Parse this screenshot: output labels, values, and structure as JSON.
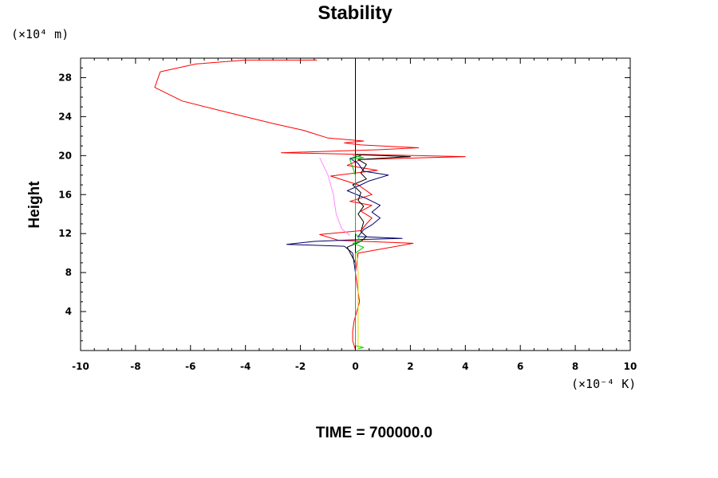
{
  "chart_data": {
    "type": "line",
    "title": "Stability",
    "ylabel": "Height",
    "xlabel": "",
    "x_unit": "(×10⁻⁴ K)",
    "y_unit": "(×10⁴ m)",
    "footer": "TIME = 700000.0",
    "xlim": [
      -10,
      10
    ],
    "ylim": [
      0,
      30
    ],
    "x_ticks": [
      -10,
      -8,
      -6,
      -4,
      -2,
      0,
      2,
      4,
      6,
      8,
      10
    ],
    "y_ticks": [
      4,
      8,
      12,
      16,
      20,
      24,
      28
    ],
    "zero_line": 0,
    "grid": false,
    "series": [
      {
        "color": "#ff0000",
        "points": [
          [
            0,
            0.1
          ],
          [
            -0.1,
            1
          ],
          [
            -0.1,
            2
          ],
          [
            -0.05,
            3
          ],
          [
            0.05,
            4
          ],
          [
            0.15,
            5
          ],
          [
            0.1,
            6
          ],
          [
            0.05,
            7
          ],
          [
            0,
            8
          ],
          [
            0.05,
            9
          ],
          [
            0.1,
            10
          ],
          [
            2.1,
            11
          ],
          [
            -0.6,
            11.3
          ],
          [
            -1.3,
            11.9
          ],
          [
            0.2,
            12.3
          ],
          [
            0.4,
            13
          ],
          [
            0.6,
            13.6
          ],
          [
            0.2,
            14.3
          ],
          [
            0.6,
            14.9
          ],
          [
            -0.2,
            15.3
          ],
          [
            0.6,
            16
          ],
          [
            0.1,
            17
          ],
          [
            -0.9,
            17.9
          ],
          [
            0.8,
            18.5
          ],
          [
            -0.3,
            19
          ],
          [
            0.2,
            19.6
          ],
          [
            4.0,
            19.9
          ],
          [
            -2.7,
            20.3
          ],
          [
            0.8,
            20.6
          ],
          [
            2.3,
            20.8
          ],
          [
            0.2,
            21.1
          ],
          [
            -0.4,
            21.3
          ],
          [
            0.3,
            21.5
          ],
          [
            -1.0,
            21.8
          ],
          [
            -1.9,
            22.6
          ],
          [
            -3.0,
            23.3
          ],
          [
            -4.6,
            24.4
          ],
          [
            -6.3,
            25.6
          ],
          [
            -7.3,
            27
          ],
          [
            -7.1,
            28.6
          ],
          [
            -5.8,
            29.4
          ],
          [
            -4.0,
            29.8
          ],
          [
            -1.4,
            29.8
          ]
        ]
      },
      {
        "color": "#00006e",
        "points": [
          [
            0,
            0.1
          ],
          [
            0,
            2
          ],
          [
            0,
            4
          ],
          [
            0,
            6
          ],
          [
            0,
            8
          ],
          [
            -0.1,
            10
          ],
          [
            -0.4,
            10.7
          ],
          [
            -2.5,
            10.9
          ],
          [
            -1.5,
            11.2
          ],
          [
            0.3,
            11.4
          ],
          [
            1.7,
            11.5
          ],
          [
            0.1,
            11.7
          ],
          [
            0.3,
            12.4
          ],
          [
            0.6,
            12.9
          ],
          [
            0.9,
            13.6
          ],
          [
            0.6,
            14.2
          ],
          [
            0.9,
            14.9
          ],
          [
            0.4,
            15.6
          ],
          [
            -0.3,
            16.4
          ],
          [
            0.2,
            17
          ],
          [
            0.5,
            17.4
          ],
          [
            1.2,
            18
          ],
          [
            0.3,
            18.4
          ],
          [
            0.1,
            19.2
          ],
          [
            -0.2,
            19.7
          ],
          [
            0.2,
            20
          ]
        ]
      },
      {
        "color": "#000000",
        "points": [
          [
            0,
            0.1
          ],
          [
            0,
            3
          ],
          [
            0,
            6
          ],
          [
            0,
            9
          ],
          [
            -0.3,
            10.6
          ],
          [
            0.2,
            11.2
          ],
          [
            0.4,
            11.7
          ],
          [
            0.2,
            12.2
          ],
          [
            0.3,
            13.2
          ],
          [
            0.1,
            14
          ],
          [
            0.3,
            14.8
          ],
          [
            0.1,
            15.4
          ],
          [
            0.2,
            16.2
          ],
          [
            -0.1,
            17
          ],
          [
            0.4,
            17.6
          ],
          [
            0.2,
            18.2
          ],
          [
            0.4,
            19.1
          ],
          [
            0.1,
            19.6
          ],
          [
            2.0,
            19.9
          ],
          [
            0,
            20.1
          ]
        ]
      },
      {
        "color": "#ff88ff",
        "points": [
          [
            -0.2,
            11.8
          ],
          [
            -0.5,
            12.5
          ],
          [
            -0.7,
            14
          ],
          [
            -0.8,
            16
          ],
          [
            -1.0,
            18
          ],
          [
            -1.3,
            19.8
          ]
        ]
      },
      {
        "color": "#00cc00",
        "points": [
          [
            0.1,
            0.2
          ],
          [
            0.3,
            0.3
          ],
          [
            0,
            0.5
          ],
          [
            0,
            2
          ],
          [
            0,
            4
          ],
          [
            0,
            6
          ],
          [
            0,
            8
          ],
          [
            0,
            10
          ],
          [
            0.3,
            10.6
          ],
          [
            -0.1,
            11
          ],
          [
            0.2,
            11.2
          ],
          [
            0,
            12
          ],
          [
            0,
            14
          ],
          [
            0,
            16
          ],
          [
            0,
            18
          ],
          [
            -0.2,
            19.6
          ],
          [
            0.3,
            19.8
          ],
          [
            -0.1,
            20
          ]
        ]
      },
      {
        "color": "#dddd00",
        "points": [
          [
            0.1,
            0.1
          ],
          [
            0.1,
            2
          ],
          [
            0.1,
            4
          ],
          [
            0.1,
            6
          ],
          [
            0.1,
            8
          ],
          [
            0.05,
            10
          ]
        ]
      }
    ]
  }
}
